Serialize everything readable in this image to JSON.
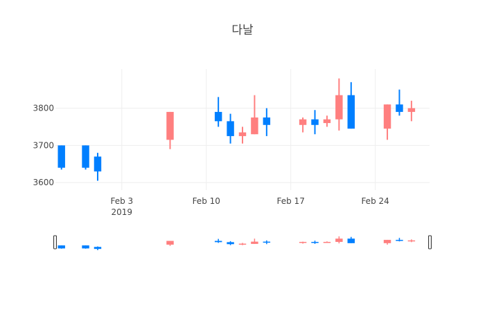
{
  "chart_data": {
    "type": "candlestick",
    "title": "다날",
    "xlabel": "",
    "ylabel": "",
    "x_range": [
      "2019-01-29",
      "2019-02-28"
    ],
    "ylim": [
      3580,
      3905
    ],
    "y_ticks": [
      3600,
      3700,
      3800
    ],
    "y_tick_labels": [
      "3600",
      "3700",
      "3800"
    ],
    "x_ticks": [
      "2019-02-03",
      "2019-02-10",
      "2019-02-17",
      "2019-02-24"
    ],
    "x_tick_labels": [
      {
        "line1": "Feb 3",
        "line2": "2019"
      },
      {
        "line1": "Feb 10",
        "line2": ""
      },
      {
        "line1": "Feb 17",
        "line2": ""
      },
      {
        "line1": "Feb 24",
        "line2": ""
      }
    ],
    "grid": true,
    "rangeslider": true,
    "colors": {
      "increasing": "#FF7F7F",
      "decreasing": "#007FFF"
    },
    "candles": [
      {
        "date": "2019-01-29",
        "open": 3700,
        "high": 3700,
        "low": 3635,
        "close": 3640
      },
      {
        "date": "2019-01-31",
        "open": 3700,
        "high": 3700,
        "low": 3635,
        "close": 3640
      },
      {
        "date": "2019-02-01",
        "open": 3670,
        "high": 3680,
        "low": 3605,
        "close": 3630
      },
      {
        "date": "2019-02-07",
        "open": 3715,
        "high": 3790,
        "low": 3690,
        "close": 3790
      },
      {
        "date": "2019-02-11",
        "open": 3790,
        "high": 3830,
        "low": 3750,
        "close": 3765
      },
      {
        "date": "2019-02-12",
        "open": 3765,
        "high": 3785,
        "low": 3705,
        "close": 3725
      },
      {
        "date": "2019-02-13",
        "open": 3725,
        "high": 3750,
        "low": 3705,
        "close": 3735
      },
      {
        "date": "2019-02-14",
        "open": 3730,
        "high": 3835,
        "low": 3730,
        "close": 3775
      },
      {
        "date": "2019-02-15",
        "open": 3775,
        "high": 3800,
        "low": 3725,
        "close": 3755
      },
      {
        "date": "2019-02-18",
        "open": 3755,
        "high": 3775,
        "low": 3735,
        "close": 3770
      },
      {
        "date": "2019-02-19",
        "open": 3770,
        "high": 3795,
        "low": 3730,
        "close": 3755
      },
      {
        "date": "2019-02-20",
        "open": 3760,
        "high": 3780,
        "low": 3750,
        "close": 3770
      },
      {
        "date": "2019-02-21",
        "open": 3770,
        "high": 3880,
        "low": 3740,
        "close": 3835
      },
      {
        "date": "2019-02-22",
        "open": 3835,
        "high": 3870,
        "low": 3745,
        "close": 3745
      },
      {
        "date": "2019-02-25",
        "open": 3745,
        "high": 3810,
        "low": 3715,
        "close": 3810
      },
      {
        "date": "2019-02-26",
        "open": 3810,
        "high": 3850,
        "low": 3780,
        "close": 3790
      },
      {
        "date": "2019-02-27",
        "open": 3790,
        "high": 3820,
        "low": 3765,
        "close": 3800
      }
    ]
  }
}
